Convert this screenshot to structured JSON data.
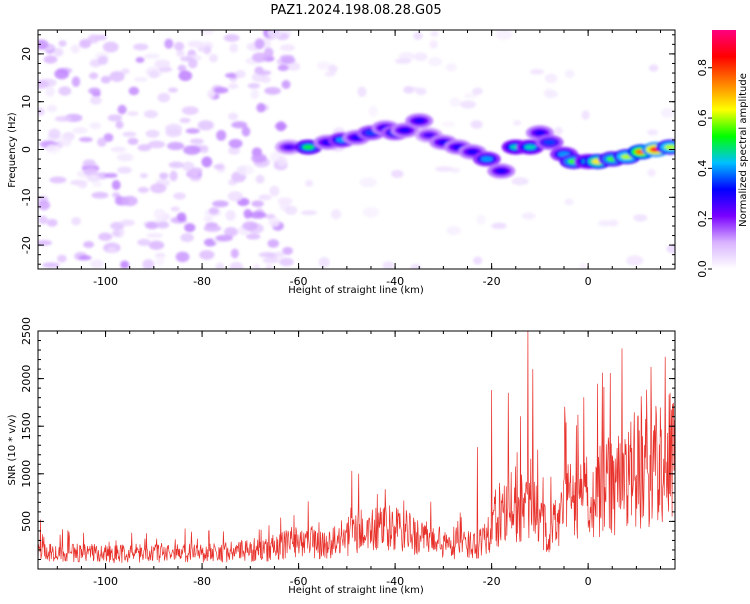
{
  "title": "PAZ1.2024.198.08.28.G05",
  "chart_data": [
    {
      "type": "heatmap",
      "xlabel": "Height of straight line (km)",
      "ylabel": "Frequency (Hz)",
      "xlim": [
        -114,
        18
      ],
      "ylim": [
        -25,
        25
      ],
      "xticks": [
        -100,
        -80,
        -60,
        -40,
        -20,
        0
      ],
      "yticks": [
        -20,
        -10,
        0,
        10,
        20
      ],
      "colorbar": {
        "label": "Normalized spectral amplitude",
        "range": [
          0,
          0.95
        ],
        "ticks": [
          0.0,
          0.2,
          0.4,
          0.6,
          0.8
        ],
        "colors": [
          "#ffffff",
          "#d9b3ff",
          "#7a00ff",
          "#0000ff",
          "#00c0ff",
          "#00ff00",
          "#ffff00",
          "#ff8000",
          "#ff0000",
          "#ff0080"
        ]
      },
      "ridge": [
        {
          "x": -62,
          "f": 0.5,
          "amp": 0.25
        },
        {
          "x": -58,
          "f": 0.5,
          "amp": 0.5
        },
        {
          "x": -54,
          "f": 1.5,
          "amp": 0.3
        },
        {
          "x": -51,
          "f": 2.0,
          "amp": 0.4
        },
        {
          "x": -48,
          "f": 2.5,
          "amp": 0.3
        },
        {
          "x": -45,
          "f": 3.5,
          "amp": 0.35
        },
        {
          "x": -42,
          "f": 4.5,
          "amp": 0.3
        },
        {
          "x": -40,
          "f": 3.5,
          "amp": 0.35
        },
        {
          "x": -38,
          "f": 4.0,
          "amp": 0.3
        },
        {
          "x": -35,
          "f": 6.0,
          "amp": 0.3
        },
        {
          "x": -33,
          "f": 3.0,
          "amp": 0.25
        },
        {
          "x": -30,
          "f": 1.5,
          "amp": 0.3
        },
        {
          "x": -27,
          "f": 0.5,
          "amp": 0.3
        },
        {
          "x": -24,
          "f": -0.5,
          "amp": 0.3
        },
        {
          "x": -21,
          "f": -2.0,
          "amp": 0.4
        },
        {
          "x": -18,
          "f": -4.5,
          "amp": 0.3
        },
        {
          "x": -15,
          "f": 0.5,
          "amp": 0.45
        },
        {
          "x": -12,
          "f": 0.5,
          "amp": 0.45
        },
        {
          "x": -10,
          "f": 3.5,
          "amp": 0.3
        },
        {
          "x": -8,
          "f": 1.5,
          "amp": 0.35
        },
        {
          "x": -5,
          "f": -1.0,
          "amp": 0.4
        },
        {
          "x": -3,
          "f": -2.5,
          "amp": 0.55
        },
        {
          "x": 0,
          "f": -2.5,
          "amp": 0.45
        },
        {
          "x": 2,
          "f": -2.5,
          "amp": 0.65
        },
        {
          "x": 5,
          "f": -2.0,
          "amp": 0.55
        },
        {
          "x": 8,
          "f": -1.5,
          "amp": 0.6
        },
        {
          "x": 11,
          "f": -0.5,
          "amp": 0.75
        },
        {
          "x": 14,
          "f": 0.0,
          "amp": 0.88
        },
        {
          "x": 17,
          "f": 0.5,
          "amp": 0.6
        }
      ]
    },
    {
      "type": "line",
      "xlabel": "Height of straight line (km)",
      "ylabel": "SNR (10 * v/v)",
      "xlim": [
        -114,
        18
      ],
      "ylim": [
        0,
        2500
      ],
      "xticks": [
        -100,
        -80,
        -60,
        -40,
        -20,
        0
      ],
      "yticks": [
        500,
        1000,
        1500,
        2000,
        2500
      ],
      "color": "#e8302a",
      "baseline": [
        {
          "x": -114,
          "y": 190
        },
        {
          "x": -100,
          "y": 180
        },
        {
          "x": -80,
          "y": 190
        },
        {
          "x": -66,
          "y": 220
        },
        {
          "x": -60,
          "y": 350
        },
        {
          "x": -54,
          "y": 280
        },
        {
          "x": -48,
          "y": 430
        },
        {
          "x": -40,
          "y": 470
        },
        {
          "x": -34,
          "y": 360
        },
        {
          "x": -28,
          "y": 250
        },
        {
          "x": -23,
          "y": 300
        },
        {
          "x": -19,
          "y": 550
        },
        {
          "x": -15,
          "y": 750
        },
        {
          "x": -11,
          "y": 650
        },
        {
          "x": -8,
          "y": 400
        },
        {
          "x": -5,
          "y": 750
        },
        {
          "x": 0,
          "y": 850
        },
        {
          "x": 5,
          "y": 1000
        },
        {
          "x": 10,
          "y": 1100
        },
        {
          "x": 14,
          "y": 1250
        },
        {
          "x": 18,
          "y": 1350
        }
      ],
      "peaks": [
        {
          "x": -113.5,
          "y": 520
        },
        {
          "x": -49,
          "y": 1030
        },
        {
          "x": -47.5,
          "y": 1000
        },
        {
          "x": -23,
          "y": 1280
        },
        {
          "x": -20,
          "y": 1880
        },
        {
          "x": -16.5,
          "y": 1850
        },
        {
          "x": -12.5,
          "y": 2500
        },
        {
          "x": -11.5,
          "y": 2100
        },
        {
          "x": 17,
          "y": 1850
        }
      ]
    }
  ]
}
